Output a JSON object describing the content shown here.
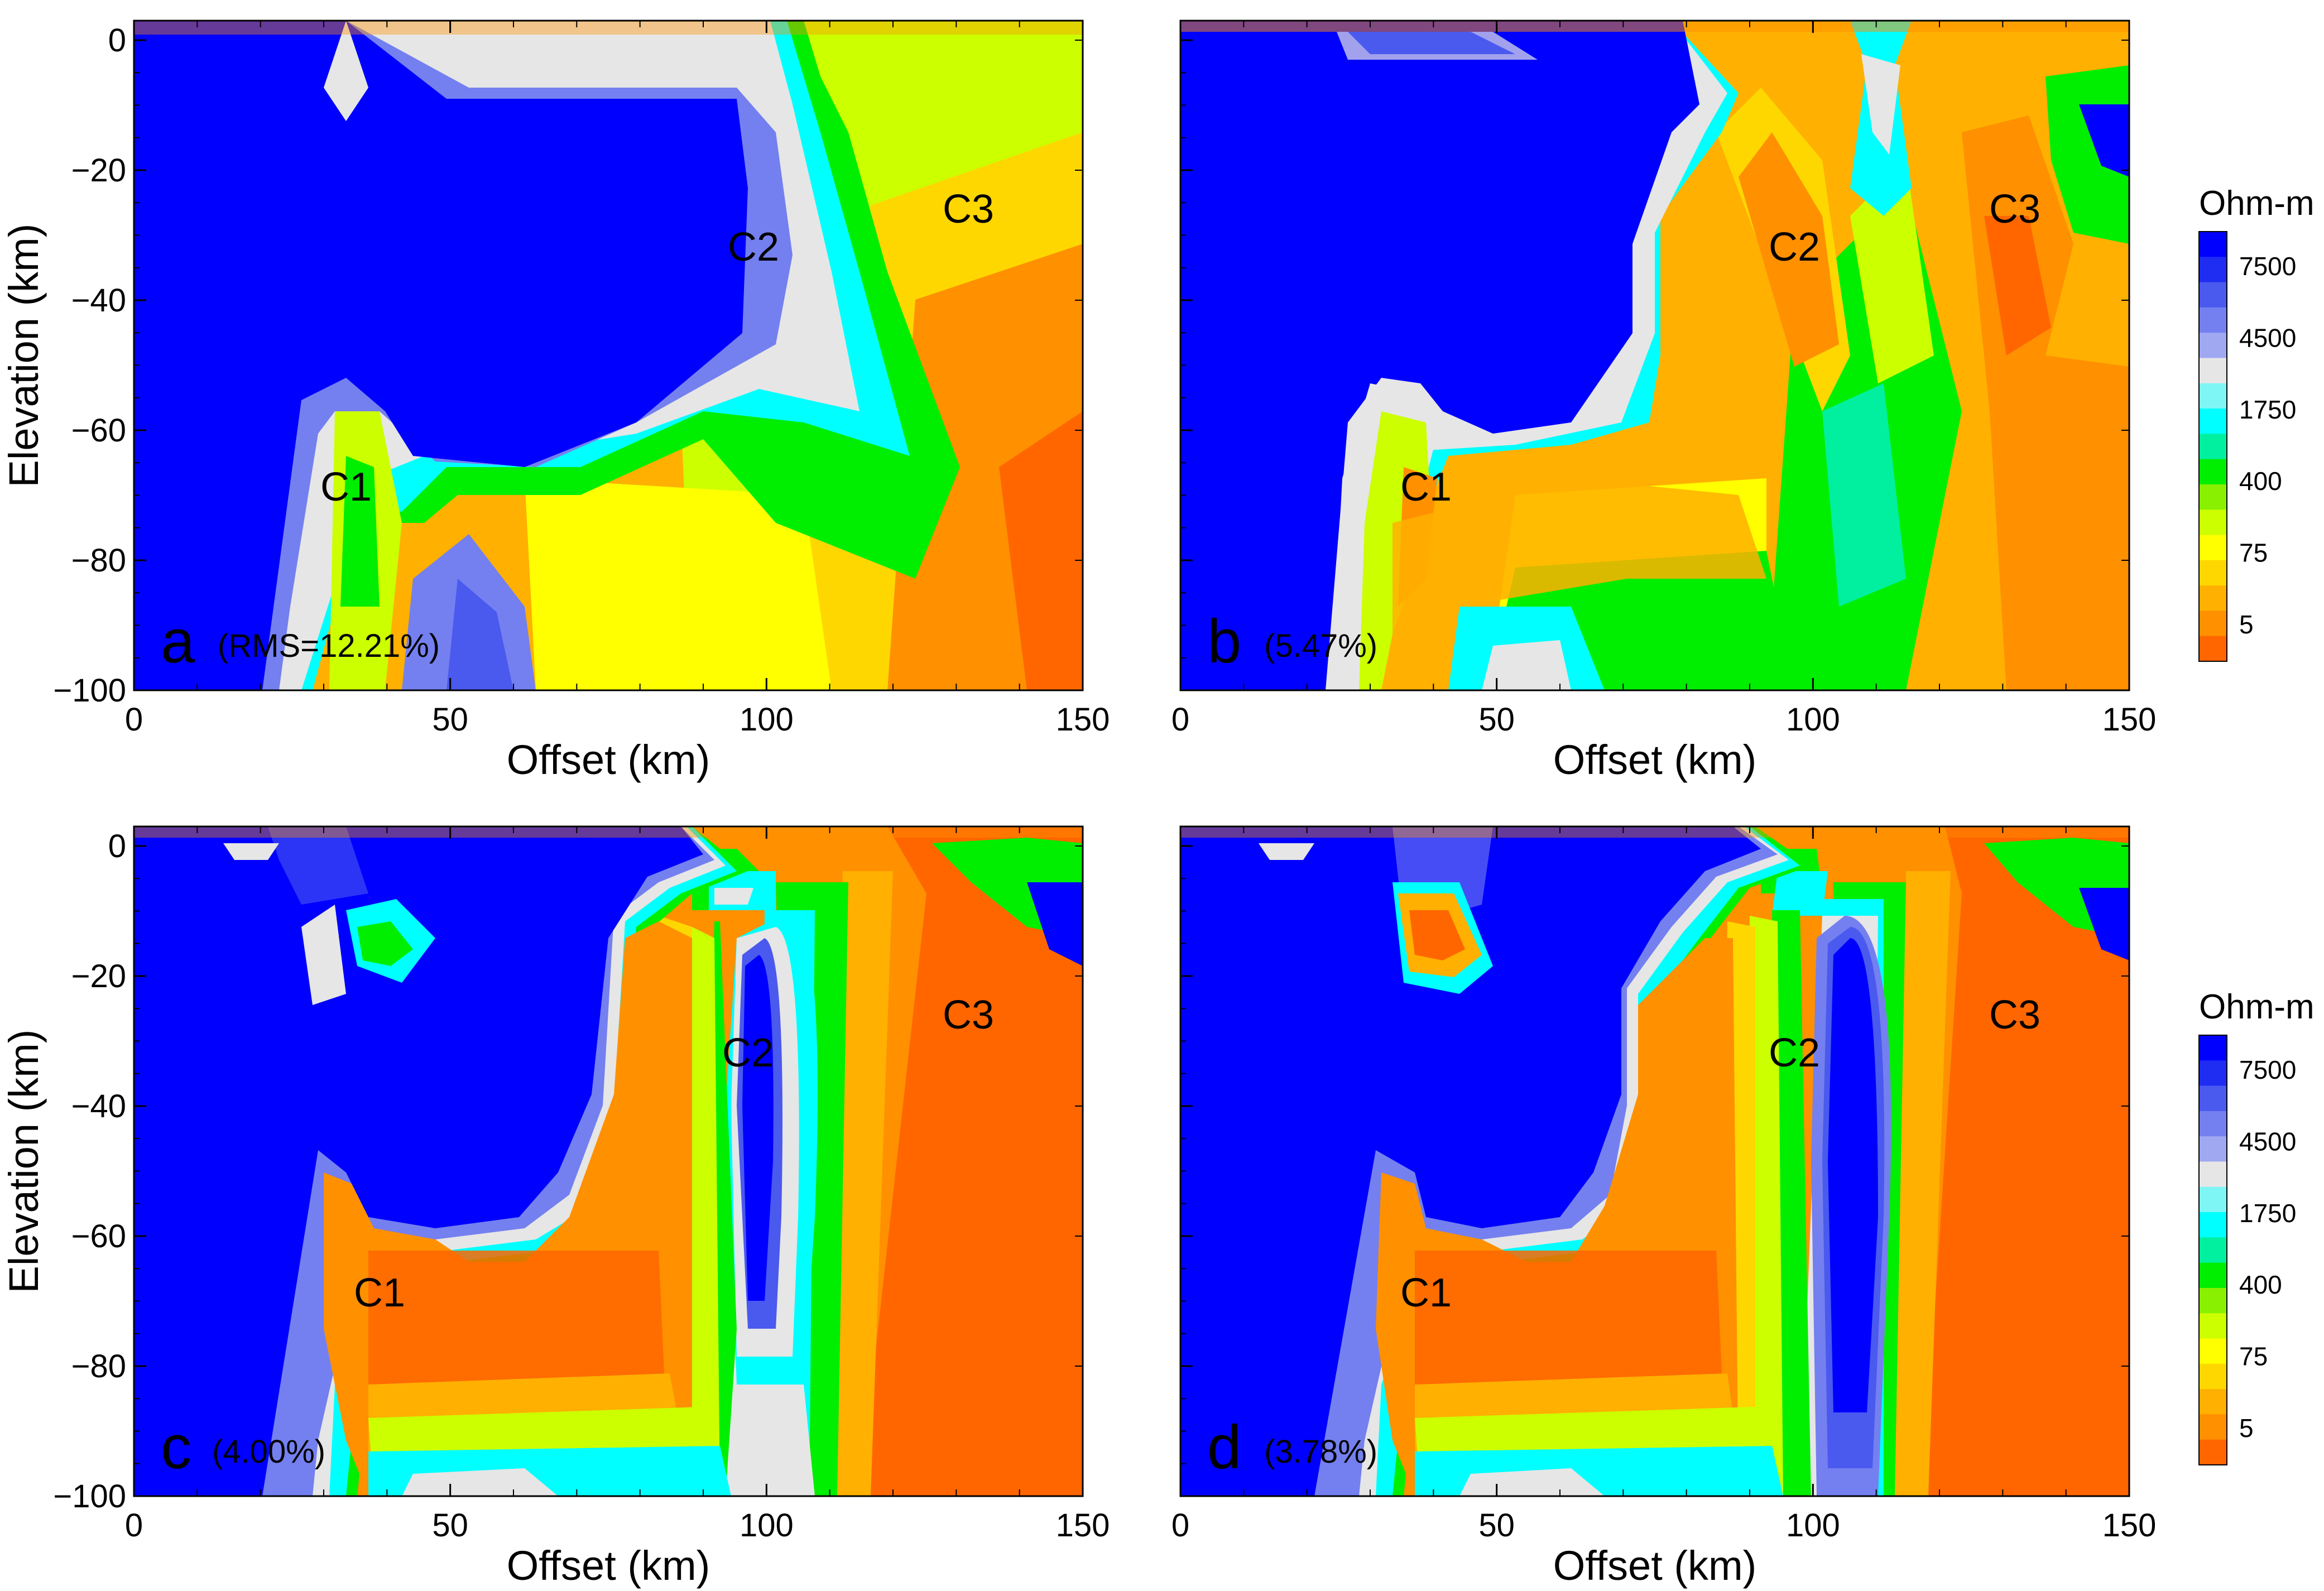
{
  "chart_data": [
    {
      "type": "heatmap",
      "panel": "a",
      "annotation": "(RMS=12.21%)",
      "xlabel": "Offset (km)",
      "ylabel": "Elevation (km)",
      "xlim": [
        0,
        150
      ],
      "ylim": [
        -100,
        3
      ],
      "xticks": [
        "0",
        "50",
        "100",
        "150"
      ],
      "yticks": [
        "0",
        "−20",
        "−40",
        "−60",
        "−80",
        "−100"
      ],
      "features": [
        {
          "label": "C1",
          "x": 38,
          "y": -69
        },
        {
          "label": "C2",
          "x": 95,
          "y": -33
        },
        {
          "label": "C3",
          "x": 128,
          "y": -26
        }
      ]
    },
    {
      "type": "heatmap",
      "panel": "b",
      "annotation": "(5.47%)",
      "xlabel": "Offset (km)",
      "ylabel": "",
      "xlim": [
        0,
        150
      ],
      "ylim": [
        -100,
        3
      ],
      "xticks": [
        "0",
        "50",
        "100",
        "150"
      ],
      "features": [
        {
          "label": "C1",
          "x": 38,
          "y": -69
        },
        {
          "label": "C2",
          "x": 95,
          "y": -33
        },
        {
          "label": "C3",
          "x": 128,
          "y": -26
        }
      ]
    },
    {
      "type": "heatmap",
      "panel": "c",
      "annotation": "(4.00%)",
      "xlabel": "Offset (km)",
      "ylabel": "Elevation (km)",
      "xlim": [
        0,
        150
      ],
      "ylim": [
        -100,
        3
      ],
      "xticks": [
        "0",
        "50",
        "100",
        "150"
      ],
      "yticks": [
        "0",
        "−20",
        "−40",
        "−60",
        "−80",
        "−100"
      ],
      "features": [
        {
          "label": "C1",
          "x": 38,
          "y": -69
        },
        {
          "label": "C2",
          "x": 95,
          "y": -33
        },
        {
          "label": "C3",
          "x": 128,
          "y": -26
        }
      ]
    },
    {
      "type": "heatmap",
      "panel": "d",
      "annotation": "(3.78%)",
      "xlabel": "Offset (km)",
      "ylabel": "",
      "xlim": [
        0,
        150
      ],
      "ylim": [
        -100,
        3
      ],
      "xticks": [
        "0",
        "50",
        "100",
        "150"
      ],
      "features": [
        {
          "label": "C1",
          "x": 38,
          "y": -69
        },
        {
          "label": "C2",
          "x": 95,
          "y": -33
        },
        {
          "label": "C3",
          "x": 128,
          "y": -26
        }
      ]
    }
  ],
  "colorbar": {
    "title": "Ohm-m",
    "labels": [
      "7500",
      "4500",
      "1750",
      "400",
      "75",
      "5"
    ],
    "colors": [
      "#0000ff",
      "#1f2cf2",
      "#4a59ee",
      "#7480ef",
      "#a0a8f2",
      "#e6e6e6",
      "#7ff6f6",
      "#00ffff",
      "#00f0a0",
      "#00ee00",
      "#88f000",
      "#ccff00",
      "#ffff00",
      "#ffd700",
      "#ffb000",
      "#ff9000",
      "#ff6600"
    ]
  },
  "colors": {
    "blue": "#0000ff",
    "light_blue": "#7480ef",
    "gray": "#e6e6e6",
    "cyan": "#00ffff",
    "green": "#00ee00",
    "yellow_green": "#ccff00",
    "yellow": "#ffff00",
    "orange": "#ffa500",
    "red_orange": "#ff6600"
  }
}
